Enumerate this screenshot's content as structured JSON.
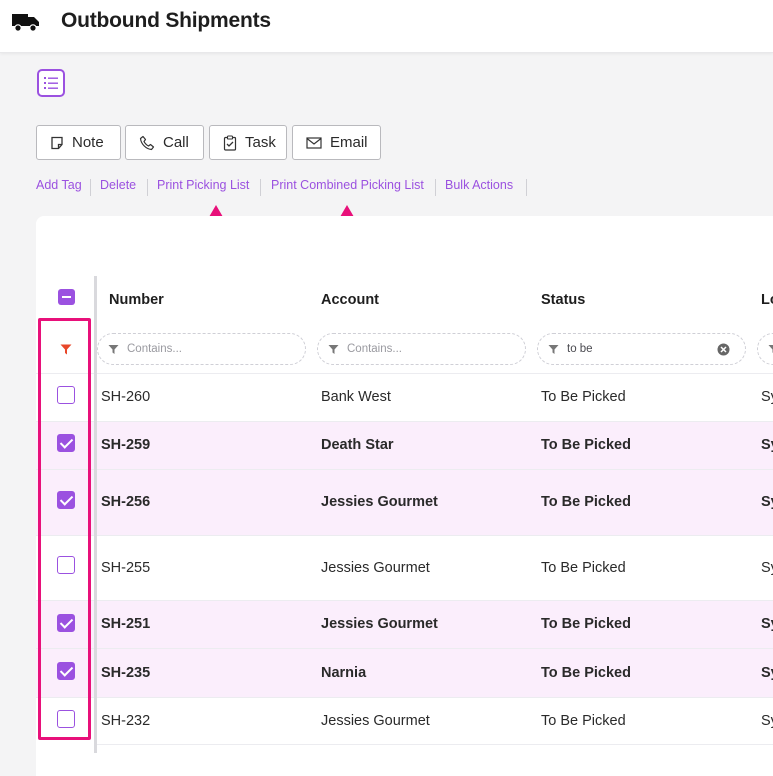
{
  "header": {
    "title": "Outbound Shipments",
    "icon": "truck-icon"
  },
  "toolbar": {
    "view_icon": "list-view-icon",
    "buttons": [
      {
        "label": "Note",
        "icon": "note-icon"
      },
      {
        "label": "Call",
        "icon": "phone-icon"
      },
      {
        "label": "Task",
        "icon": "task-icon"
      },
      {
        "label": "Email",
        "icon": "email-icon"
      }
    ]
  },
  "links": [
    "Add Tag",
    "Delete",
    "Print Picking List",
    "Print Combined Picking List",
    "Bulk Actions"
  ],
  "table": {
    "columns": [
      "Number",
      "Account",
      "Status",
      "Lo"
    ],
    "filters": [
      {
        "value": "",
        "placeholder": "Contains..."
      },
      {
        "value": "",
        "placeholder": "Contains..."
      },
      {
        "value": "to be",
        "placeholder": ""
      }
    ],
    "rows": [
      {
        "number": "SH-260",
        "account": "Bank West",
        "status": "To Be Picked",
        "location": "Sy",
        "selected": false
      },
      {
        "number": "SH-259",
        "account": "Death Star",
        "status": "To Be Picked",
        "location": "Sy",
        "selected": true
      },
      {
        "number": "SH-256",
        "account": "Jessies Gourmet",
        "status": "To Be Picked",
        "location": "Sy",
        "selected": true
      },
      {
        "number": "SH-255",
        "account": "Jessies Gourmet",
        "status": "To Be Picked",
        "location": "Sy",
        "selected": false
      },
      {
        "number": "SH-251",
        "account": "Jessies Gourmet",
        "status": "To Be Picked",
        "location": "Sy",
        "selected": true
      },
      {
        "number": "SH-235",
        "account": "Narnia",
        "status": "To Be Picked",
        "location": "Sy",
        "selected": true
      },
      {
        "number": "SH-232",
        "account": "Jessies Gourmet",
        "status": "To Be Picked",
        "location": "Sy",
        "selected": false
      }
    ]
  },
  "colors": {
    "accent": "#9b51e0",
    "highlight": "#e8107a",
    "selected_row": "#fbeefc",
    "filter_icon": "#e8472a"
  }
}
